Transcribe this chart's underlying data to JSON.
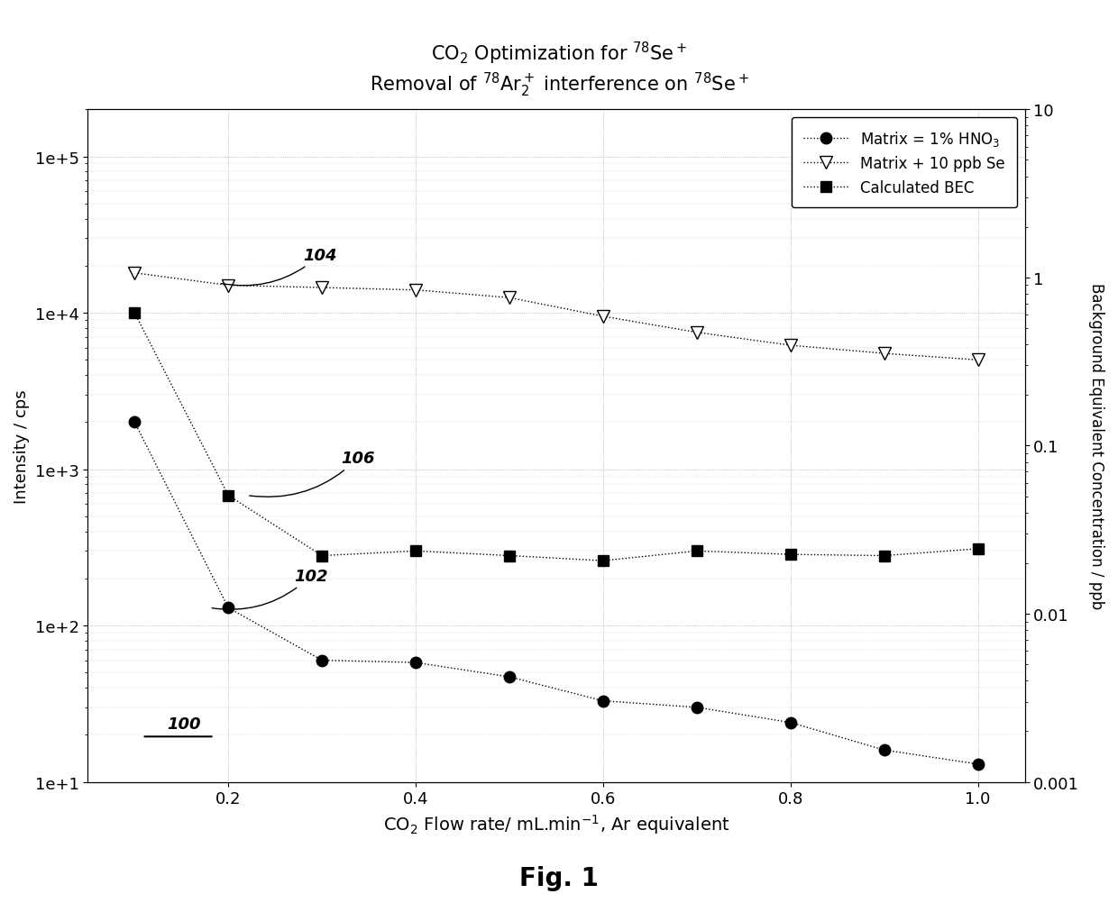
{
  "title_line1": "CO$_2$ Optimization for $^{78}$Se$^+$",
  "title_line2": "Removal of $^{78}$Ar$_2^+$ interference on $^{78}$Se$^+$",
  "xlabel": "CO$_2$ Flow rate/ mL.min$^{-1}$, Ar equivalent",
  "ylabel_left": "Intensity / cps",
  "ylabel_right": "Background Equivalent Concentration / ppb",
  "fig_label": "Fig. 1",
  "legend_labels": [
    "Matrix = 1% HNO$_3$",
    "Matrix + 10 ppb Se",
    "Calculated BEC"
  ],
  "x_data": [
    0.1,
    0.2,
    0.3,
    0.4,
    0.5,
    0.6,
    0.7,
    0.8,
    0.9,
    1.0
  ],
  "matrix_hno3": [
    2000,
    130,
    60,
    58,
    47,
    33,
    30,
    24,
    16,
    13
  ],
  "matrix_se": [
    18000,
    15000,
    14500,
    14000,
    12500,
    9500,
    7500,
    6200,
    5500,
    5000
  ],
  "calc_bec": [
    10000,
    680,
    280,
    300,
    280,
    260,
    300,
    285,
    280,
    310
  ],
  "xlim": [
    0.05,
    1.05
  ],
  "ylim_left": [
    10,
    200000
  ],
  "ylim_right": [
    0.001,
    10
  ],
  "background_color": "#ffffff",
  "grid_color": "#aaaaaa"
}
